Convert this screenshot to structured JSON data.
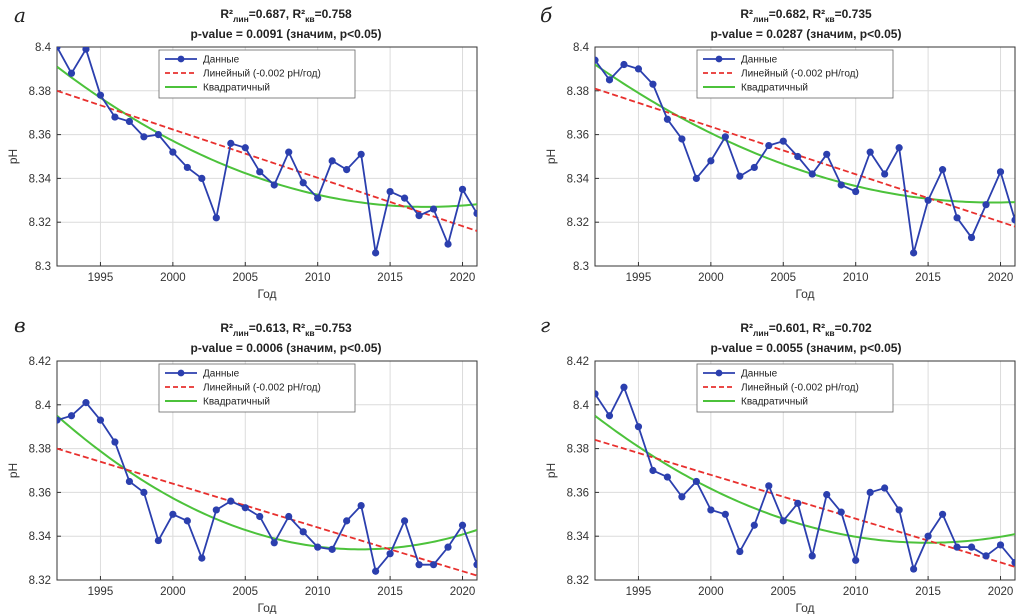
{
  "chart_data": [
    {
      "type": "line",
      "panel_letter": "а",
      "title": {
        "main": "R²",
        "sub": "лин",
        "mid": "=0.687, R²",
        "sub2": "кв",
        "end": "=0.758"
      },
      "subtitle": "p-value = 0.0091 (значим, p<0.05)",
      "xlabel": "Год",
      "ylabel": "pH",
      "xlim": [
        1992,
        2021
      ],
      "ylim": [
        8.3,
        8.4
      ],
      "xticks": [
        1995,
        2000,
        2005,
        2010,
        2015,
        2020
      ],
      "yticks": [
        8.3,
        8.32,
        8.34,
        8.36,
        8.38,
        8.4
      ],
      "grid": true,
      "legend_position": "top-center",
      "series": [
        {
          "name": "Данные",
          "kind": "data",
          "color": "#2b3fae",
          "x": [
            1992,
            1993,
            1994,
            1995,
            1996,
            1997,
            1998,
            1999,
            2000,
            2001,
            2002,
            2003,
            2004,
            2005,
            2006,
            2007,
            2008,
            2009,
            2010,
            2011,
            2012,
            2013,
            2014,
            2015,
            2016,
            2017,
            2018,
            2019,
            2020,
            2021
          ],
          "y": [
            8.4,
            8.388,
            8.399,
            8.378,
            8.368,
            8.366,
            8.359,
            8.36,
            8.352,
            8.345,
            8.34,
            8.322,
            8.356,
            8.354,
            8.343,
            8.337,
            8.352,
            8.338,
            8.331,
            8.348,
            8.344,
            8.351,
            8.306,
            8.334,
            8.331,
            8.323,
            8.326,
            8.31,
            8.335,
            8.324
          ]
        },
        {
          "name": "Линейный (-0.002 pH/год)",
          "kind": "linear",
          "color": "#e8302e",
          "start": 8.38,
          "end": 8.316
        },
        {
          "name": "Квадратичный",
          "kind": "quad",
          "color": "#4cc23b",
          "start": 8.391,
          "vertex_x": 2017.5,
          "vertex_y": 8.327
        }
      ]
    },
    {
      "type": "line",
      "panel_letter": "б",
      "title": {
        "main": "R²",
        "sub": "лин",
        "mid": "=0.682, R²",
        "sub2": "кв",
        "end": "=0.735"
      },
      "subtitle": "p-value = 0.0287 (значим, p<0.05)",
      "xlabel": "Год",
      "ylabel": "pH",
      "xlim": [
        1992,
        2021
      ],
      "ylim": [
        8.3,
        8.4
      ],
      "xticks": [
        1995,
        2000,
        2005,
        2010,
        2015,
        2020
      ],
      "yticks": [
        8.3,
        8.32,
        8.34,
        8.36,
        8.38,
        8.4
      ],
      "grid": true,
      "legend_position": "top-center",
      "series": [
        {
          "name": "Данные",
          "kind": "data",
          "color": "#2b3fae",
          "x": [
            1992,
            1993,
            1994,
            1995,
            1996,
            1997,
            1998,
            1999,
            2000,
            2001,
            2002,
            2003,
            2004,
            2005,
            2006,
            2007,
            2008,
            2009,
            2010,
            2011,
            2012,
            2013,
            2014,
            2015,
            2016,
            2017,
            2018,
            2019,
            2020,
            2021
          ],
          "y": [
            8.394,
            8.385,
            8.392,
            8.39,
            8.383,
            8.367,
            8.358,
            8.34,
            8.348,
            8.359,
            8.341,
            8.345,
            8.355,
            8.357,
            8.35,
            8.342,
            8.351,
            8.337,
            8.334,
            8.352,
            8.342,
            8.354,
            8.306,
            8.33,
            8.344,
            8.322,
            8.313,
            8.328,
            8.343,
            8.321
          ]
        },
        {
          "name": "Линейный (-0.002 pH/год)",
          "kind": "linear",
          "color": "#e8302e",
          "start": 8.381,
          "end": 8.318
        },
        {
          "name": "Квадратичный",
          "kind": "quad",
          "color": "#4cc23b",
          "start": 8.392,
          "vertex_x": 2019.5,
          "vertex_y": 8.329
        }
      ]
    },
    {
      "type": "line",
      "panel_letter": "в",
      "title": {
        "main": "R²",
        "sub": "лин",
        "mid": "=0.613, R²",
        "sub2": "кв",
        "end": "=0.753"
      },
      "subtitle": "p-value = 0.0006 (значим, p<0.05)",
      "xlabel": "Год",
      "ylabel": "pH",
      "xlim": [
        1992,
        2021
      ],
      "ylim": [
        8.32,
        8.42
      ],
      "xticks": [
        1995,
        2000,
        2005,
        2010,
        2015,
        2020
      ],
      "yticks": [
        8.32,
        8.34,
        8.36,
        8.38,
        8.4,
        8.42
      ],
      "grid": true,
      "legend_position": "top-center",
      "series": [
        {
          "name": "Данные",
          "kind": "data",
          "color": "#2b3fae",
          "x": [
            1992,
            1993,
            1994,
            1995,
            1996,
            1997,
            1998,
            1999,
            2000,
            2001,
            2002,
            2003,
            2004,
            2005,
            2006,
            2007,
            2008,
            2009,
            2010,
            2011,
            2012,
            2013,
            2014,
            2015,
            2016,
            2017,
            2018,
            2019,
            2020,
            2021
          ],
          "y": [
            8.393,
            8.395,
            8.401,
            8.393,
            8.383,
            8.365,
            8.36,
            8.338,
            8.35,
            8.347,
            8.33,
            8.352,
            8.356,
            8.353,
            8.349,
            8.337,
            8.349,
            8.342,
            8.335,
            8.334,
            8.347,
            8.354,
            8.324,
            8.332,
            8.347,
            8.327,
            8.327,
            8.335,
            8.345,
            8.327
          ]
        },
        {
          "name": "Линейный (-0.002 pH/год)",
          "kind": "linear",
          "color": "#e8302e",
          "start": 8.38,
          "end": 8.322
        },
        {
          "name": "Квадратичный",
          "kind": "quad",
          "color": "#4cc23b",
          "start": 8.395,
          "vertex_x": 2013.0,
          "vertex_y": 8.334
        }
      ]
    },
    {
      "type": "line",
      "panel_letter": "г",
      "title": {
        "main": "R²",
        "sub": "лин",
        "mid": "=0.601, R²",
        "sub2": "кв",
        "end": "=0.702"
      },
      "subtitle": "p-value = 0.0055 (значим, p<0.05)",
      "xlabel": "Год",
      "ylabel": "pH",
      "xlim": [
        1992,
        2021
      ],
      "ylim": [
        8.32,
        8.42
      ],
      "xticks": [
        1995,
        2000,
        2005,
        2010,
        2015,
        2020
      ],
      "yticks": [
        8.32,
        8.34,
        8.36,
        8.38,
        8.4,
        8.42
      ],
      "grid": true,
      "legend_position": "top-center",
      "series": [
        {
          "name": "Данные",
          "kind": "data",
          "color": "#2b3fae",
          "x": [
            1992,
            1993,
            1994,
            1995,
            1996,
            1997,
            1998,
            1999,
            2000,
            2001,
            2002,
            2003,
            2004,
            2005,
            2006,
            2007,
            2008,
            2009,
            2010,
            2011,
            2012,
            2013,
            2014,
            2015,
            2016,
            2017,
            2018,
            2019,
            2020,
            2021
          ],
          "y": [
            8.405,
            8.395,
            8.408,
            8.39,
            8.37,
            8.367,
            8.358,
            8.365,
            8.352,
            8.35,
            8.333,
            8.345,
            8.363,
            8.347,
            8.355,
            8.331,
            8.359,
            8.351,
            8.329,
            8.36,
            8.362,
            8.352,
            8.325,
            8.34,
            8.35,
            8.335,
            8.335,
            8.331,
            8.336,
            8.328
          ]
        },
        {
          "name": "Линейный (-0.002 pH/год)",
          "kind": "linear",
          "color": "#e8302e",
          "start": 8.384,
          "end": 8.326
        },
        {
          "name": "Квадратичный",
          "kind": "quad",
          "color": "#4cc23b",
          "start": 8.395,
          "vertex_x": 2015.0,
          "vertex_y": 8.337
        }
      ]
    }
  ]
}
